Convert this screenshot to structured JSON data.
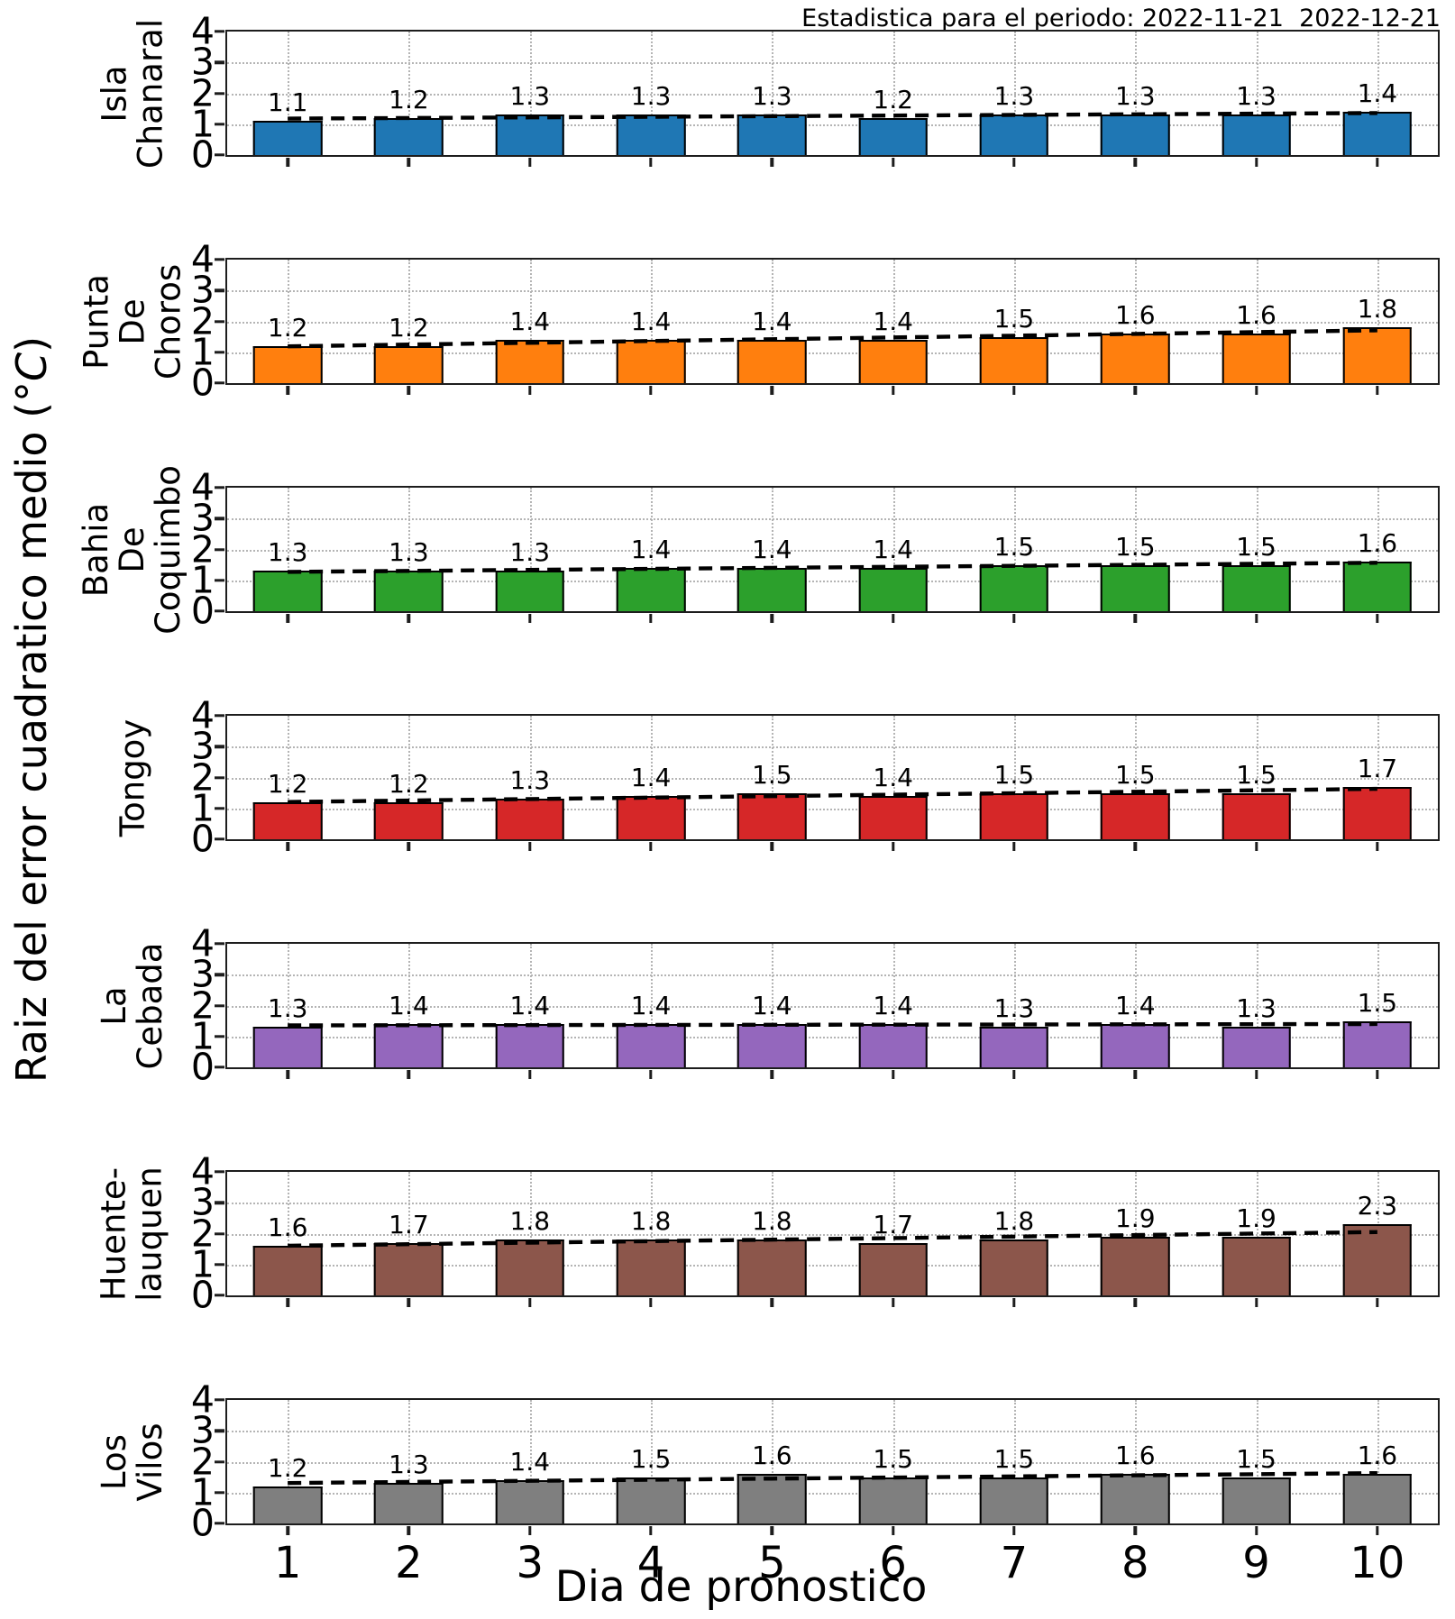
{
  "header": {
    "title": "Estadistica para el periodo: 2022-11-21  2022-12-21"
  },
  "chart_data": {
    "type": "bar",
    "categories": [
      "1",
      "2",
      "3",
      "4",
      "5",
      "6",
      "7",
      "8",
      "9",
      "10"
    ],
    "xlabel": "Dia de pronostico",
    "ylabel_prefix": "Raiz del error cuadratico medio (°",
    "ylabel_c": "C",
    "ylabel_suffix": ")",
    "ylim": [
      0,
      4
    ],
    "y_ticks": [
      "0",
      "1",
      "2",
      "3",
      "4"
    ],
    "grid": "dotted gray, vertical at each day and horizontal at 1,2,3",
    "overlay": "black dashed linear trend line per subplot",
    "subplots": [
      {
        "station": "Isla Chanaral",
        "label_lines": "Isla\nChanaral",
        "color": "#1f77b4",
        "values": [
          1.1,
          1.2,
          1.3,
          1.3,
          1.3,
          1.2,
          1.3,
          1.3,
          1.3,
          1.4
        ],
        "bar_labels": [
          "1.1",
          "1.2",
          "1.3",
          "1.3",
          "1.3",
          "1.2",
          "1.3",
          "1.3",
          "1.3",
          "1.4"
        ]
      },
      {
        "station": "Punta De Choros",
        "label_lines": "Punta\nDe\nChoros",
        "color": "#ff7f0e",
        "values": [
          1.2,
          1.2,
          1.4,
          1.4,
          1.4,
          1.4,
          1.5,
          1.6,
          1.6,
          1.8
        ],
        "bar_labels": [
          "1.2",
          "1.2",
          "1.4",
          "1.4",
          "1.4",
          "1.4",
          "1.5",
          "1.6",
          "1.6",
          "1.8"
        ]
      },
      {
        "station": "Bahia De Coquimbo",
        "label_lines": "Bahia\nDe\nCoquimbo",
        "color": "#2ca02c",
        "values": [
          1.3,
          1.3,
          1.3,
          1.4,
          1.4,
          1.4,
          1.5,
          1.5,
          1.5,
          1.6
        ],
        "bar_labels": [
          "1.3",
          "1.3",
          "1.3",
          "1.4",
          "1.4",
          "1.4",
          "1.5",
          "1.5",
          "1.5",
          "1.6"
        ]
      },
      {
        "station": "Tongoy",
        "label_lines": "Tongoy",
        "color": "#d62728",
        "values": [
          1.2,
          1.2,
          1.3,
          1.4,
          1.5,
          1.4,
          1.5,
          1.5,
          1.5,
          1.7
        ],
        "bar_labels": [
          "1.2",
          "1.2",
          "1.3",
          "1.4",
          "1.5",
          "1.4",
          "1.5",
          "1.5",
          "1.5",
          "1.7"
        ]
      },
      {
        "station": "La Cebada",
        "label_lines": "La\nCebada",
        "color": "#9467bd",
        "values": [
          1.3,
          1.4,
          1.4,
          1.4,
          1.4,
          1.4,
          1.3,
          1.4,
          1.3,
          1.5
        ],
        "bar_labels": [
          "1.3",
          "1.4",
          "1.4",
          "1.4",
          "1.4",
          "1.4",
          "1.3",
          "1.4",
          "1.3",
          "1.5"
        ]
      },
      {
        "station": "Huente-lauquen",
        "label_lines": "Huente-\nlauquen",
        "color": "#8c564b",
        "values": [
          1.6,
          1.7,
          1.8,
          1.8,
          1.8,
          1.7,
          1.8,
          1.9,
          1.9,
          2.3
        ],
        "bar_labels": [
          "1.6",
          "1.7",
          "1.8",
          "1.8",
          "1.8",
          "1.7",
          "1.8",
          "1.9",
          "1.9",
          "2.3"
        ]
      },
      {
        "station": "Los Vilos",
        "label_lines": "Los\nVilos",
        "color": "#7f7f7f",
        "values": [
          1.2,
          1.3,
          1.4,
          1.5,
          1.6,
          1.5,
          1.5,
          1.6,
          1.5,
          1.6
        ],
        "bar_labels": [
          "1.2",
          "1.3",
          "1.4",
          "1.5",
          "1.6",
          "1.5",
          "1.5",
          "1.6",
          "1.5",
          "1.6"
        ]
      }
    ]
  }
}
